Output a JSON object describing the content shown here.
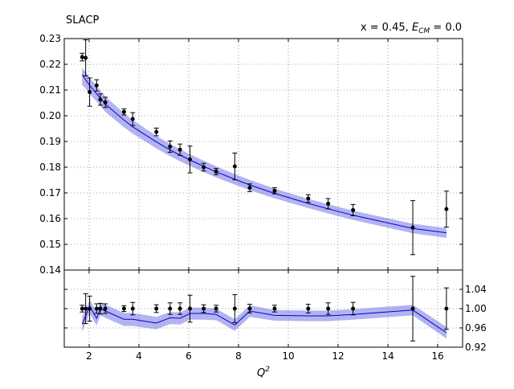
{
  "chart_data": {
    "type": "scatter",
    "title": "SLACP",
    "annotation": {
      "prefix": "x = 0.45, ",
      "var": "E",
      "sub": "CM",
      "suffix": " = 0.0"
    },
    "xlabel": {
      "base": "Q",
      "sup": "2"
    },
    "xlim": [
      1.0,
      17.0
    ],
    "xticks": [
      "2",
      "4",
      "6",
      "8",
      "10",
      "12",
      "14",
      "16"
    ],
    "xtick_values": [
      2,
      4,
      6,
      8,
      10,
      12,
      14,
      16
    ],
    "grid": true,
    "main": {
      "ylim": [
        0.14,
        0.23
      ],
      "yticks": [
        "0.14",
        "0.15",
        "0.16",
        "0.17",
        "0.18",
        "0.19",
        "0.20",
        "0.21",
        "0.22",
        "0.23"
      ],
      "ytick_values": [
        0.14,
        0.15,
        0.16,
        0.17,
        0.18,
        0.19,
        0.2,
        0.21,
        0.22,
        0.23
      ],
      "data_points": [
        {
          "x": 1.72,
          "y": 0.2228,
          "err": 0.0015
        },
        {
          "x": 1.86,
          "y": 0.2225,
          "err": 0.007
        },
        {
          "x": 2.02,
          "y": 0.2092,
          "err": 0.0055
        },
        {
          "x": 2.3,
          "y": 0.2118,
          "err": 0.0022
        },
        {
          "x": 2.45,
          "y": 0.2063,
          "err": 0.0022
        },
        {
          "x": 2.65,
          "y": 0.2052,
          "err": 0.002
        },
        {
          "x": 3.4,
          "y": 0.2015,
          "err": 0.0012
        },
        {
          "x": 3.75,
          "y": 0.1987,
          "err": 0.0025
        },
        {
          "x": 4.7,
          "y": 0.1937,
          "err": 0.0015
        },
        {
          "x": 5.25,
          "y": 0.188,
          "err": 0.0022
        },
        {
          "x": 5.65,
          "y": 0.1868,
          "err": 0.0022
        },
        {
          "x": 6.05,
          "y": 0.183,
          "err": 0.0052
        },
        {
          "x": 6.6,
          "y": 0.18,
          "err": 0.0015
        },
        {
          "x": 7.1,
          "y": 0.1783,
          "err": 0.0012
        },
        {
          "x": 7.85,
          "y": 0.1803,
          "err": 0.0052
        },
        {
          "x": 8.45,
          "y": 0.172,
          "err": 0.0015
        },
        {
          "x": 9.45,
          "y": 0.1708,
          "err": 0.0012
        },
        {
          "x": 10.8,
          "y": 0.1678,
          "err": 0.0015
        },
        {
          "x": 11.6,
          "y": 0.1658,
          "err": 0.002
        },
        {
          "x": 12.6,
          "y": 0.1633,
          "err": 0.0022
        },
        {
          "x": 15.0,
          "y": 0.1565,
          "err": 0.0105
        },
        {
          "x": 16.35,
          "y": 0.1637,
          "err": 0.007
        }
      ],
      "fit": [
        {
          "x": 1.72,
          "y": 0.216,
          "lo": 0.212,
          "hi": 0.2185
        },
        {
          "x": 1.86,
          "y": 0.214,
          "lo": 0.2105,
          "hi": 0.217
        },
        {
          "x": 2.02,
          "y": 0.2118,
          "lo": 0.2085,
          "hi": 0.2148
        },
        {
          "x": 2.3,
          "y": 0.2085,
          "lo": 0.2055,
          "hi": 0.2115
        },
        {
          "x": 2.45,
          "y": 0.2068,
          "lo": 0.2038,
          "hi": 0.2098
        },
        {
          "x": 2.65,
          "y": 0.2045,
          "lo": 0.2015,
          "hi": 0.2075
        },
        {
          "x": 3.4,
          "y": 0.1983,
          "lo": 0.1955,
          "hi": 0.201
        },
        {
          "x": 3.75,
          "y": 0.1957,
          "lo": 0.193,
          "hi": 0.1983
        },
        {
          "x": 4.7,
          "y": 0.1898,
          "lo": 0.1873,
          "hi": 0.1922
        },
        {
          "x": 5.25,
          "y": 0.1867,
          "lo": 0.1843,
          "hi": 0.189
        },
        {
          "x": 5.65,
          "y": 0.1847,
          "lo": 0.1823,
          "hi": 0.187
        },
        {
          "x": 6.05,
          "y": 0.1828,
          "lo": 0.1805,
          "hi": 0.185
        },
        {
          "x": 6.6,
          "y": 0.1803,
          "lo": 0.1781,
          "hi": 0.1825
        },
        {
          "x": 7.1,
          "y": 0.1782,
          "lo": 0.176,
          "hi": 0.1803
        },
        {
          "x": 7.85,
          "y": 0.1753,
          "lo": 0.1732,
          "hi": 0.1773
        },
        {
          "x": 8.45,
          "y": 0.1731,
          "lo": 0.1711,
          "hi": 0.1751
        },
        {
          "x": 9.45,
          "y": 0.1698,
          "lo": 0.1679,
          "hi": 0.1717
        },
        {
          "x": 10.8,
          "y": 0.1659,
          "lo": 0.1641,
          "hi": 0.1677
        },
        {
          "x": 11.6,
          "y": 0.1638,
          "lo": 0.162,
          "hi": 0.1656
        },
        {
          "x": 12.6,
          "y": 0.1613,
          "lo": 0.1595,
          "hi": 0.1631
        },
        {
          "x": 15.0,
          "y": 0.1562,
          "lo": 0.1543,
          "hi": 0.158
        },
        {
          "x": 16.35,
          "y": 0.1545,
          "lo": 0.1525,
          "hi": 0.1563
        }
      ]
    },
    "ratio": {
      "ylim": [
        0.92,
        1.08
      ],
      "yticks": [
        "0.92",
        "0.96",
        "1.00",
        "1.04"
      ],
      "ytick_values": [
        0.92,
        0.96,
        1.0,
        1.04
      ],
      "data_points": [
        {
          "x": 1.72,
          "y": 1.0,
          "err": 0.007
        },
        {
          "x": 1.86,
          "y": 1.0,
          "err": 0.031
        },
        {
          "x": 2.02,
          "y": 1.0,
          "err": 0.026
        },
        {
          "x": 2.3,
          "y": 1.0,
          "err": 0.01
        },
        {
          "x": 2.45,
          "y": 1.0,
          "err": 0.011
        },
        {
          "x": 2.65,
          "y": 1.0,
          "err": 0.01
        },
        {
          "x": 3.4,
          "y": 1.0,
          "err": 0.006
        },
        {
          "x": 3.75,
          "y": 1.0,
          "err": 0.013
        },
        {
          "x": 4.7,
          "y": 1.0,
          "err": 0.008
        },
        {
          "x": 5.25,
          "y": 1.0,
          "err": 0.012
        },
        {
          "x": 5.65,
          "y": 1.0,
          "err": 0.012
        },
        {
          "x": 6.05,
          "y": 1.0,
          "err": 0.028
        },
        {
          "x": 6.6,
          "y": 1.0,
          "err": 0.008
        },
        {
          "x": 7.1,
          "y": 1.0,
          "err": 0.007
        },
        {
          "x": 7.85,
          "y": 1.0,
          "err": 0.029
        },
        {
          "x": 8.45,
          "y": 1.0,
          "err": 0.009
        },
        {
          "x": 9.45,
          "y": 1.0,
          "err": 0.007
        },
        {
          "x": 10.8,
          "y": 1.0,
          "err": 0.009
        },
        {
          "x": 11.6,
          "y": 1.0,
          "err": 0.012
        },
        {
          "x": 12.6,
          "y": 1.0,
          "err": 0.013
        },
        {
          "x": 15.0,
          "y": 1.0,
          "err": 0.067
        },
        {
          "x": 16.35,
          "y": 1.0,
          "err": 0.043
        }
      ],
      "fit": [
        {
          "x": 1.72,
          "y": 0.968,
          "lo": 0.952,
          "hi": 0.983
        },
        {
          "x": 1.86,
          "y": 0.985,
          "lo": 0.97,
          "hi": 0.998
        },
        {
          "x": 2.02,
          "y": 1.005,
          "lo": 0.99,
          "hi": 1.018
        },
        {
          "x": 2.3,
          "y": 0.98,
          "lo": 0.965,
          "hi": 0.994
        },
        {
          "x": 2.45,
          "y": 1.0,
          "lo": 0.986,
          "hi": 1.013
        },
        {
          "x": 2.65,
          "y": 0.995,
          "lo": 0.981,
          "hi": 1.008
        },
        {
          "x": 3.4,
          "y": 0.978,
          "lo": 0.964,
          "hi": 0.991
        },
        {
          "x": 3.75,
          "y": 0.978,
          "lo": 0.964,
          "hi": 0.991
        },
        {
          "x": 4.7,
          "y": 0.97,
          "lo": 0.957,
          "hi": 0.983
        },
        {
          "x": 5.25,
          "y": 0.981,
          "lo": 0.968,
          "hi": 0.993
        },
        {
          "x": 5.65,
          "y": 0.98,
          "lo": 0.967,
          "hi": 0.992
        },
        {
          "x": 6.05,
          "y": 0.99,
          "lo": 0.977,
          "hi": 1.002
        },
        {
          "x": 6.6,
          "y": 0.99,
          "lo": 0.977,
          "hi": 1.002
        },
        {
          "x": 7.1,
          "y": 0.988,
          "lo": 0.976,
          "hi": 1.0
        },
        {
          "x": 7.85,
          "y": 0.966,
          "lo": 0.954,
          "hi": 0.978
        },
        {
          "x": 8.45,
          "y": 0.995,
          "lo": 0.983,
          "hi": 1.007
        },
        {
          "x": 9.45,
          "y": 0.986,
          "lo": 0.975,
          "hi": 0.997
        },
        {
          "x": 10.8,
          "y": 0.985,
          "lo": 0.974,
          "hi": 0.996
        },
        {
          "x": 11.6,
          "y": 0.985,
          "lo": 0.974,
          "hi": 0.996
        },
        {
          "x": 12.6,
          "y": 0.988,
          "lo": 0.977,
          "hi": 0.999
        },
        {
          "x": 15.0,
          "y": 0.997,
          "lo": 0.986,
          "hi": 1.008
        },
        {
          "x": 16.35,
          "y": 0.95,
          "lo": 0.938,
          "hi": 0.962
        }
      ]
    },
    "colors": {
      "fit_line": "#0000cc",
      "band": "#b3b3f2",
      "points": "#000000",
      "grid": "#555555"
    }
  }
}
